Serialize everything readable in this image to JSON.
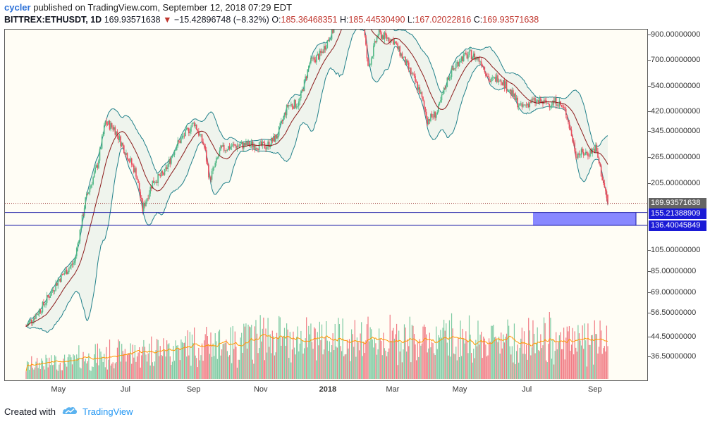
{
  "header": {
    "publisher_user": "cycler",
    "publisher_text": "published on TradingView.com, September 12, 2018 07:29 EDT",
    "symbol": "BITTREX:ETHUSDT, 1D",
    "last_price": "169.93571638",
    "change": "−15.42896748 (−8.32%)",
    "open_label": "O:",
    "open": "185.36468351",
    "high_label": "H:",
    "high": "185.44530490",
    "low_label": "L:",
    "low": "167.02022816",
    "close_label": "C:",
    "close": "169.93571638"
  },
  "price_axis": {
    "ticks": [
      "900.00000000",
      "700.00000000",
      "540.00000000",
      "420.00000000",
      "345.00000000",
      "265.00000000",
      "205.00000000",
      "105.00000000",
      "85.00000000",
      "69.00000000",
      "56.50000000",
      "44.50000000",
      "36.50000000"
    ],
    "labels": {
      "last": "169.93571638",
      "upper_box": "155.21388909",
      "lower_box": "136.40045849"
    }
  },
  "time_axis": {
    "ticks": [
      "May",
      "Jul",
      "Sep",
      "Nov",
      "2018",
      "Mar",
      "May",
      "Jul",
      "Sep"
    ]
  },
  "footer": {
    "created_with": "Created with",
    "brand": "TradingView"
  },
  "colors": {
    "up": "#53b987",
    "down": "#eb4d5c",
    "band": "#21818a",
    "basis": "#8b1a1a",
    "volume_ma": "#ff9800",
    "range_box": "#8888ff",
    "range_line": "#1a1aa6",
    "last_line": "#8b1a1a"
  },
  "chart_data": {
    "type": "candlestick",
    "title": "",
    "scale": "log",
    "ylim": [
      30,
      1050
    ],
    "indicators": [
      "Bollinger Bands (20)",
      "Volume",
      "Volume MA"
    ],
    "horizontal_levels": [
      155.21388909,
      136.40045849
    ],
    "last_price": 169.93571638,
    "series": [
      {
        "date": "2017-04-01",
        "close": 50
      },
      {
        "date": "2017-04-15",
        "close": 60
      },
      {
        "date": "2017-05-01",
        "close": 80
      },
      {
        "date": "2017-05-15",
        "close": 95
      },
      {
        "date": "2017-05-25",
        "close": 175
      },
      {
        "date": "2017-06-05",
        "close": 250
      },
      {
        "date": "2017-06-12",
        "close": 380
      },
      {
        "date": "2017-06-20",
        "close": 360
      },
      {
        "date": "2017-07-01",
        "close": 280
      },
      {
        "date": "2017-07-10",
        "close": 230
      },
      {
        "date": "2017-07-16",
        "close": 160
      },
      {
        "date": "2017-07-25",
        "close": 210
      },
      {
        "date": "2017-08-05",
        "close": 230
      },
      {
        "date": "2017-08-15",
        "close": 300
      },
      {
        "date": "2017-09-01",
        "close": 380
      },
      {
        "date": "2017-09-10",
        "close": 300
      },
      {
        "date": "2017-09-15",
        "close": 215
      },
      {
        "date": "2017-09-25",
        "close": 290
      },
      {
        "date": "2017-10-05",
        "close": 300
      },
      {
        "date": "2017-10-20",
        "close": 305
      },
      {
        "date": "2017-11-05",
        "close": 300
      },
      {
        "date": "2017-11-15",
        "close": 330
      },
      {
        "date": "2017-11-25",
        "close": 450
      },
      {
        "date": "2017-12-05",
        "close": 460
      },
      {
        "date": "2017-12-15",
        "close": 690
      },
      {
        "date": "2017-12-25",
        "close": 750
      },
      {
        "date": "2018-01-05",
        "close": 950
      },
      {
        "date": "2018-01-13",
        "close": 1350
      },
      {
        "date": "2018-01-20",
        "close": 1050
      },
      {
        "date": "2018-02-01",
        "close": 1100
      },
      {
        "date": "2018-02-06",
        "close": 650
      },
      {
        "date": "2018-02-15",
        "close": 920
      },
      {
        "date": "2018-03-01",
        "close": 860
      },
      {
        "date": "2018-03-15",
        "close": 650
      },
      {
        "date": "2018-03-25",
        "close": 520
      },
      {
        "date": "2018-04-01",
        "close": 390
      },
      {
        "date": "2018-04-10",
        "close": 420
      },
      {
        "date": "2018-04-20",
        "close": 600
      },
      {
        "date": "2018-05-01",
        "close": 720
      },
      {
        "date": "2018-05-10",
        "close": 750
      },
      {
        "date": "2018-05-20",
        "close": 700
      },
      {
        "date": "2018-05-28",
        "close": 570
      },
      {
        "date": "2018-06-05",
        "close": 600
      },
      {
        "date": "2018-06-15",
        "close": 520
      },
      {
        "date": "2018-06-25",
        "close": 440
      },
      {
        "date": "2018-07-05",
        "close": 470
      },
      {
        "date": "2018-07-20",
        "close": 460
      },
      {
        "date": "2018-07-28",
        "close": 470
      },
      {
        "date": "2018-08-05",
        "close": 420
      },
      {
        "date": "2018-08-14",
        "close": 280
      },
      {
        "date": "2018-08-25",
        "close": 280
      },
      {
        "date": "2018-09-01",
        "close": 295
      },
      {
        "date": "2018-09-06",
        "close": 230
      },
      {
        "date": "2018-09-12",
        "close": 169.94
      }
    ]
  }
}
